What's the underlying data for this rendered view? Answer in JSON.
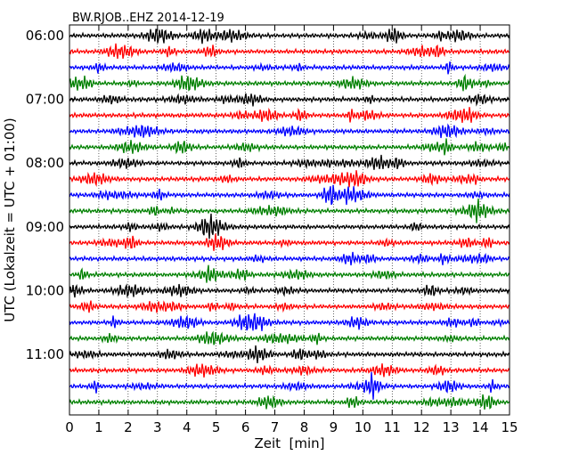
{
  "chart_data": {
    "type": "line",
    "title": "BW.RJOB..EHZ 2014-12-19",
    "xlabel": "Zeit  [min]",
    "ylabel": "UTC (Lokalzeit = UTC + 01:00)",
    "xlim": [
      0,
      15
    ],
    "x_ticks": [
      "0",
      "1",
      "2",
      "3",
      "4",
      "5",
      "6",
      "7",
      "8",
      "9",
      "10",
      "11",
      "12",
      "13",
      "14",
      "15"
    ],
    "y_ticks": [
      "06:00",
      "07:00",
      "08:00",
      "09:00",
      "10:00",
      "11:00"
    ],
    "traces_per_hour": 4,
    "trace_count": 24,
    "trace_colors": [
      "#000000",
      "#ff0000",
      "#0000ff",
      "#008000"
    ],
    "grid": "vertical-dotted"
  }
}
